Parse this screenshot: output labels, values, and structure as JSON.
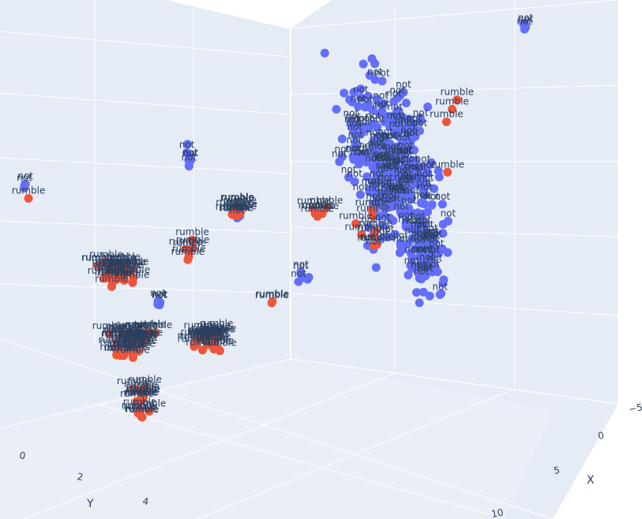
{
  "chart_data": {
    "type": "scatter3d",
    "title": "",
    "series": [
      {
        "name": "",
        "label": "rumble",
        "color": "#EF553B"
      },
      {
        "name": "",
        "label": "not",
        "color": "#636EFA"
      }
    ],
    "axes": {
      "x": {
        "title": "X",
        "ticks": [
          "−5",
          "0",
          "5",
          "10"
        ]
      },
      "y": {
        "title": "Y",
        "ticks": [
          "0",
          "2",
          "4"
        ]
      }
    },
    "background": "#E5ECF6",
    "grid_color": "#ffffff",
    "seed": 7
  }
}
